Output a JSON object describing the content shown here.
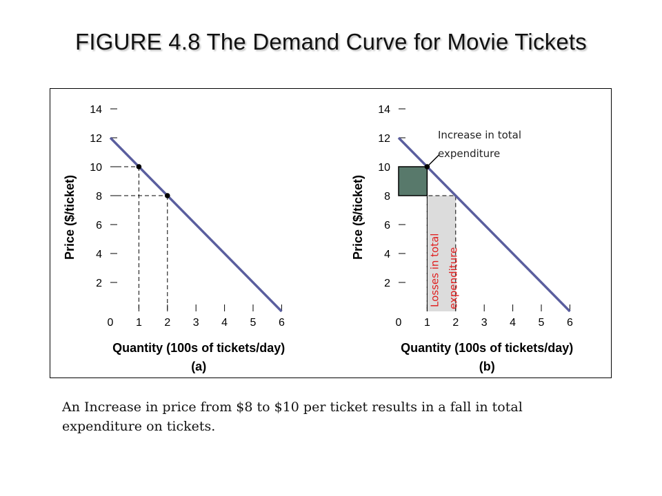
{
  "title": "FIGURE 4.8 The Demand Curve for Movie Tickets",
  "caption": "An Increase in price from $8 to $10 per ticket results in a fall in total expenditure on tickets.",
  "colors": {
    "curve": "#5a5e9e",
    "gain_area": "#58796b",
    "loss_area": "#dcdcdc",
    "loss_text": "#e02020",
    "frame": "#000000"
  },
  "chart_data": [
    {
      "type": "line",
      "panel": "(a)",
      "xlabel": "Quantity (100s of tickets/day)",
      "ylabel": "Price ($/ticket)",
      "xlim": [
        0,
        6
      ],
      "ylim": [
        0,
        14
      ],
      "x_ticks": [
        "0",
        "1",
        "2",
        "3",
        "4",
        "5",
        "6"
      ],
      "y_ticks": [
        "2",
        "4",
        "6",
        "8",
        "10",
        "12",
        "14"
      ],
      "grid": false,
      "series": [
        {
          "x": [
            0,
            6
          ],
          "y": [
            12,
            0
          ]
        }
      ],
      "points": [
        {
          "x": 1,
          "y": 10
        },
        {
          "x": 2,
          "y": 8
        }
      ]
    },
    {
      "type": "line",
      "panel": "(b)",
      "xlabel": "Quantity (100s of tickets/day)",
      "ylabel": "Price ($/ticket)",
      "xlim": [
        0,
        6
      ],
      "ylim": [
        0,
        14
      ],
      "x_ticks": [
        "0",
        "1",
        "2",
        "3",
        "4",
        "5",
        "6"
      ],
      "y_ticks": [
        "2",
        "4",
        "6",
        "8",
        "10",
        "12",
        "14"
      ],
      "grid": false,
      "series": [
        {
          "x": [
            0,
            6
          ],
          "y": [
            12,
            0
          ]
        }
      ],
      "points": [
        {
          "x": 1,
          "y": 10
        }
      ],
      "areas": [
        {
          "x": [
            0,
            1
          ],
          "y": [
            8,
            10
          ]
        },
        {
          "x": [
            1,
            2
          ],
          "y": [
            0,
            8
          ]
        }
      ],
      "annotations": [
        {
          "text": "Increase in total expenditure",
          "x": 1,
          "y": 10
        },
        {
          "text": "Losses in total expenditure"
        }
      ]
    }
  ]
}
